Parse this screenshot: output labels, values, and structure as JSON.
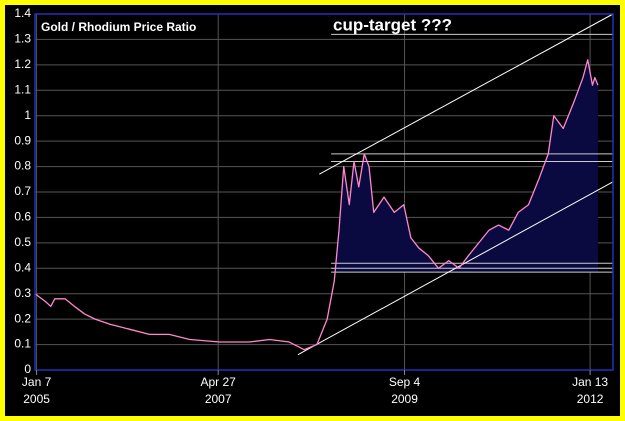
{
  "chart_data": {
    "type": "line",
    "title": "Gold / Rhodium Price Ratio",
    "annotation": "cup-target ???",
    "color": "#ff88cc",
    "x": [
      2005.0,
      2005.13,
      2005.2,
      2005.25,
      2005.38,
      2005.5,
      2005.63,
      2005.76,
      2005.95,
      2006.2,
      2006.45,
      2006.7,
      2006.96,
      2007.34,
      2007.71,
      2007.97,
      2008.22,
      2008.41,
      2008.57,
      2008.7,
      2008.79,
      2008.85,
      2008.91,
      2008.98,
      2009.04,
      2009.1,
      2009.17,
      2009.23,
      2009.29,
      2009.42,
      2009.55,
      2009.67,
      2009.76,
      2009.86,
      2009.98,
      2010.11,
      2010.24,
      2010.37,
      2010.49,
      2010.62,
      2010.75,
      2010.87,
      2011.0,
      2011.12,
      2011.25,
      2011.38,
      2011.5,
      2011.57,
      2011.69,
      2011.82,
      2011.88,
      2011.94,
      2012.0,
      2012.06,
      2012.09,
      2012.13
    ],
    "values": [
      0.3,
      0.27,
      0.25,
      0.28,
      0.28,
      0.25,
      0.22,
      0.2,
      0.18,
      0.16,
      0.14,
      0.14,
      0.12,
      0.11,
      0.11,
      0.12,
      0.11,
      0.08,
      0.1,
      0.2,
      0.35,
      0.55,
      0.8,
      0.65,
      0.82,
      0.72,
      0.85,
      0.8,
      0.62,
      0.68,
      0.62,
      0.65,
      0.52,
      0.48,
      0.45,
      0.4,
      0.43,
      0.4,
      0.45,
      0.5,
      0.55,
      0.57,
      0.55,
      0.62,
      0.65,
      0.75,
      0.85,
      1.0,
      0.95,
      1.05,
      1.1,
      1.15,
      1.22,
      1.12,
      1.15,
      1.12
    ],
    "xlim": [
      2005.0,
      2012.32
    ],
    "xticks": [
      {
        "value": 2005.02,
        "label": "Jan 7"
      },
      {
        "value": 2007.32,
        "label": "Apr 27"
      },
      {
        "value": 2009.68,
        "label": "Sep 4"
      },
      {
        "value": 2012.03,
        "label": "Jan 13"
      }
    ],
    "xtick_years": [
      "2005",
      "2007",
      "2009",
      "2012"
    ],
    "ylim": [
      0,
      1.4
    ],
    "yticks": [
      0,
      0.1,
      0.2,
      0.3,
      0.4,
      0.5,
      0.6,
      0.7,
      0.8,
      0.9,
      1,
      1.1,
      1.2,
      1.3,
      1.4
    ],
    "grid": true,
    "reference_lines": {
      "start": 2008.75,
      "values": [
        1.32,
        0.85,
        0.82,
        0.42,
        0.4,
        0.385
      ]
    },
    "trend_lines": [
      {
        "x": [
          2008.6,
          2012.32
        ],
        "y": [
          0.77,
          1.4
        ]
      },
      {
        "x": [
          2008.33,
          2012.32
        ],
        "y": [
          0.06,
          0.74
        ]
      }
    ]
  }
}
